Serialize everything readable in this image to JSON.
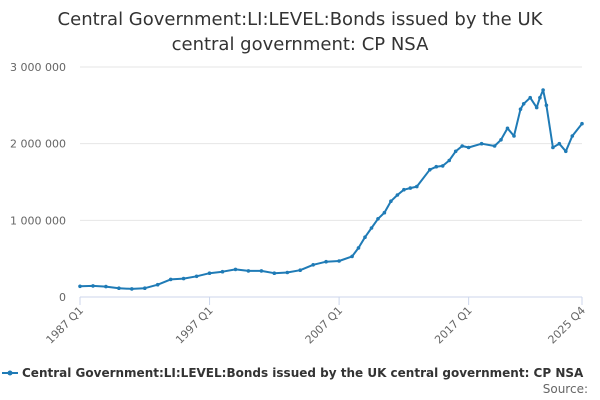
{
  "chart_data": {
    "type": "line",
    "title": "Central Government:LI:LEVEL:Bonds issued by the UK central government: CP NSA",
    "title_lines": [
      "Central Government:LI:LEVEL:Bonds issued by the UK",
      "central government: CP NSA"
    ],
    "xlabel": "",
    "ylabel": "",
    "x_ticks": [
      "1987 Q1",
      "1997 Q1",
      "2007 Q1",
      "2017 Q1",
      "2025 Q4"
    ],
    "y_ticks": [
      "0",
      "1 000 000",
      "2 000 000",
      "3 000 000"
    ],
    "ylim": [
      0,
      3000000
    ],
    "grid": true,
    "legend_position": "bottom",
    "series": [
      {
        "name": "Central Government:LI:LEVEL:Bonds issued by the UK central government: CP NSA",
        "color": "#1f7bb6",
        "x": [
          "1987 Q1",
          "1988 Q1",
          "1989 Q1",
          "1990 Q1",
          "1991 Q1",
          "1992 Q1",
          "1993 Q1",
          "1994 Q1",
          "1995 Q1",
          "1996 Q1",
          "1997 Q1",
          "1998 Q1",
          "1999 Q1",
          "2000 Q1",
          "2001 Q1",
          "2002 Q1",
          "2003 Q1",
          "2004 Q1",
          "2005 Q1",
          "2006 Q1",
          "2007 Q1",
          "2008 Q1",
          "2008 Q3",
          "2009 Q1",
          "2009 Q3",
          "2010 Q1",
          "2010 Q3",
          "2011 Q1",
          "2011 Q3",
          "2012 Q1",
          "2012 Q3",
          "2013 Q1",
          "2014 Q1",
          "2014 Q3",
          "2015 Q1",
          "2015 Q3",
          "2016 Q1",
          "2016 Q3",
          "2017 Q1",
          "2018 Q1",
          "2019 Q1",
          "2019 Q3",
          "2020 Q1",
          "2020 Q3",
          "2021 Q1",
          "2021 Q2",
          "2021 Q4",
          "2022 Q2",
          "2022 Q3",
          "2022 Q4",
          "2023 Q1",
          "2023 Q3",
          "2024 Q1",
          "2024 Q3",
          "2025 Q1",
          "2025 Q4"
        ],
        "values": [
          140000,
          145000,
          135000,
          115000,
          105000,
          115000,
          160000,
          230000,
          240000,
          270000,
          310000,
          330000,
          360000,
          340000,
          340000,
          310000,
          320000,
          350000,
          420000,
          460000,
          470000,
          530000,
          640000,
          780000,
          900000,
          1020000,
          1100000,
          1250000,
          1330000,
          1400000,
          1420000,
          1440000,
          1660000,
          1700000,
          1710000,
          1780000,
          1900000,
          1970000,
          1950000,
          2000000,
          1970000,
          2050000,
          2200000,
          2100000,
          2450000,
          2520000,
          2600000,
          2470000,
          2600000,
          2700000,
          2500000,
          1950000,
          2000000,
          1900000,
          2100000,
          2260000
        ]
      }
    ]
  },
  "legend": {
    "label": "Central Government:LI:LEVEL:Bonds issued by the UK central government: CP NSA"
  },
  "credits": {
    "label": "Source:"
  }
}
